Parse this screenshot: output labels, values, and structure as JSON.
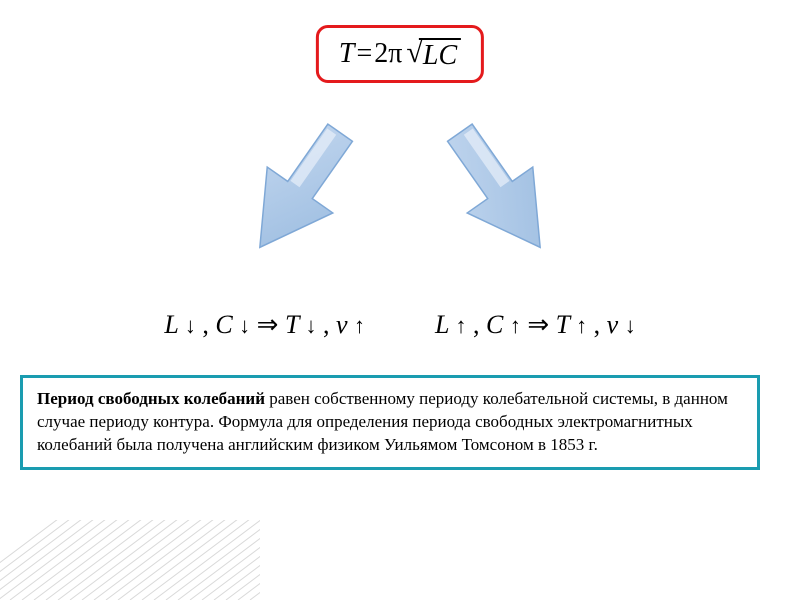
{
  "formula": {
    "lhs": "T",
    "equals": " = ",
    "coef": "2π",
    "sqrt_content": "LC",
    "border_color": "#e41a1c",
    "text_color": "#000000",
    "font_size": 28
  },
  "arrows": {
    "fill_light": "#c3d7ef",
    "fill_dark": "#9bbce0",
    "stroke": "#7fa8d6",
    "stroke_width": 1.5,
    "reflection_fill": "#e8f0fa",
    "width": 120,
    "height": 160
  },
  "relations": {
    "left": {
      "L": "L",
      "L_dir": "↓",
      "sep1": ", ",
      "C": "C",
      "C_dir": "↓",
      "impl": " ⇒ ",
      "T": "T",
      "T_dir": "↓",
      "sep2": ", ",
      "v": "v",
      "v_dir": "↑"
    },
    "right": {
      "L": "L",
      "L_dir": "↑",
      "sep1": ", ",
      "C": "C",
      "C_dir": "↑",
      "impl": " ⇒ ",
      "T": "T",
      "T_dir": "↑",
      "sep2": ", ",
      "v": "v",
      "v_dir": "↓"
    },
    "font_size": 26,
    "text_color": "#000000"
  },
  "description": {
    "lead": " Период свободных колебаний",
    "body": " равен собственному периоду колебательной системы, в данном случае периоду контура. Формула для определения периода свободных электромагнитных колебаний была получена английским физиком Уильямом Томсоном в 1853 г.",
    "border_color": "#1a9cb0",
    "font_size": 17,
    "text_color": "#000000"
  },
  "hatching": {
    "line_color": "#d9d9d9",
    "line_width": 1
  },
  "background_color": "#ffffff"
}
